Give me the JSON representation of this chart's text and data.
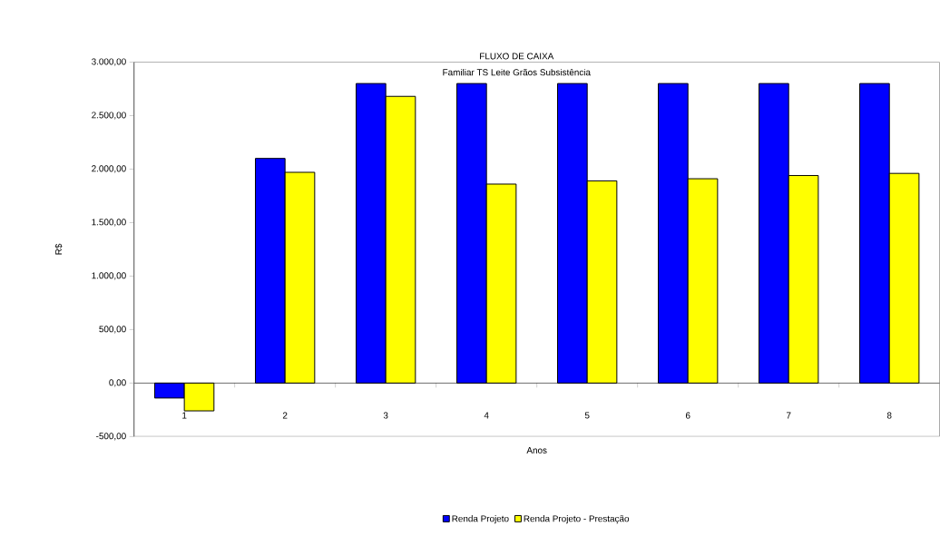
{
  "chart_data": {
    "type": "bar",
    "title": "FLUXO DE CAIXA",
    "subtitle": "Familiar TS Leite Grãos Subsistência",
    "xlabel": "Anos",
    "ylabel": "R$",
    "categories": [
      "1",
      "2",
      "3",
      "4",
      "5",
      "6",
      "7",
      "8"
    ],
    "series": [
      {
        "name": "Renda Projeto",
        "color": "#0000ff",
        "values": [
          -140,
          2100,
          2800,
          2800,
          2800,
          2800,
          2800,
          2800
        ]
      },
      {
        "name": "Renda Projeto - Prestação",
        "color": "#ffff00",
        "values": [
          -260,
          1970,
          2680,
          1860,
          1890,
          1910,
          1940,
          1960
        ]
      }
    ],
    "ylim": [
      -500,
      3000
    ],
    "yticks": [
      {
        "value": -500,
        "label": "-500,00"
      },
      {
        "value": 0,
        "label": "0,00"
      },
      {
        "value": 500,
        "label": "500,00"
      },
      {
        "value": 1000,
        "label": "1.000,00"
      },
      {
        "value": 1500,
        "label": "1.500,00"
      },
      {
        "value": 2000,
        "label": "2.000,00"
      },
      {
        "value": 2500,
        "label": "2.500,00"
      },
      {
        "value": 3000,
        "label": "3.000,00"
      }
    ],
    "legend": "bottom"
  }
}
